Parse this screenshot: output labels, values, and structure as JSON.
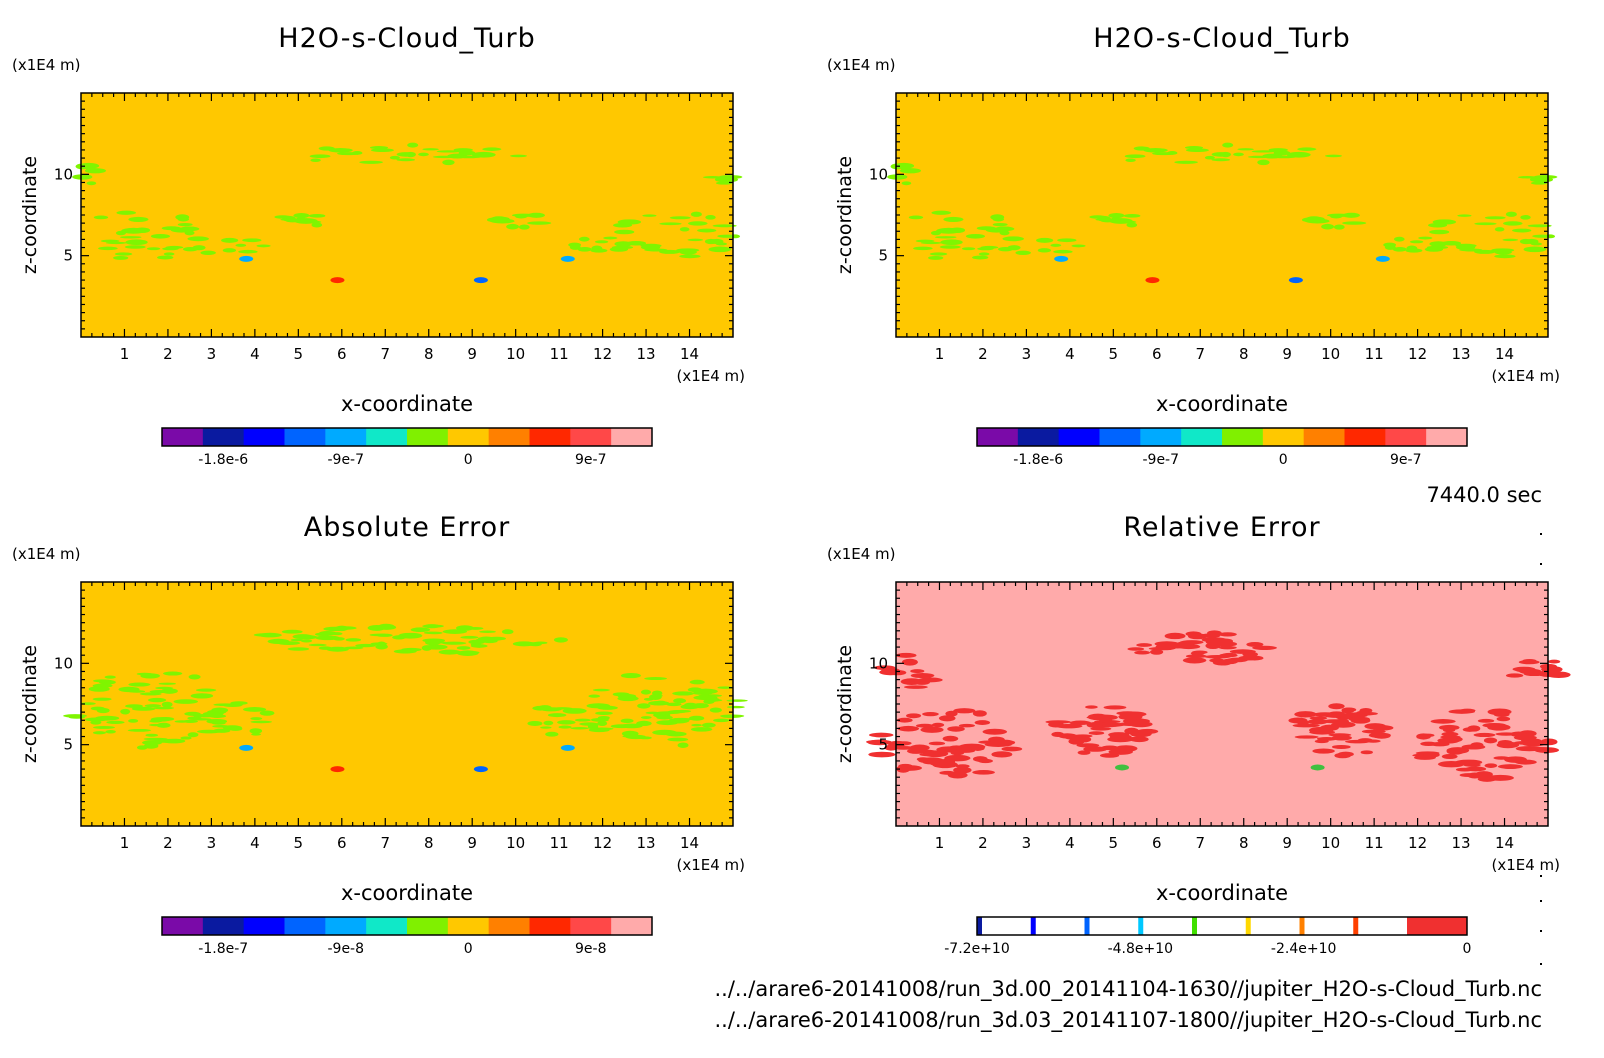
{
  "time_label": "7440.0 sec",
  "file_lines": [
    "../../arare6-20141008/run_3d.00_20141104-1630//jupiter_H2O-s-Cloud_Turb.nc",
    "../../arare6-20141008/run_3d.03_20141107-1800//jupiter_H2O-s-Cloud_Turb.nc"
  ],
  "colors": {
    "background_yellow": "#ffc800",
    "feature_green": "#7ff500",
    "relerr_background": "#ffaaaa",
    "relerr_feature": "#f03030"
  },
  "chart_data": [
    {
      "type": "heatmap",
      "title": "H2O-s-Cloud_Turb",
      "xlabel": "x-coordinate",
      "ylabel": "z-coordinate",
      "x_unit": "(x1E4 m)",
      "y_unit": "(x1E4 m)",
      "xlim": [
        0,
        15
      ],
      "ylim": [
        0,
        15
      ],
      "x_ticks": [
        "1",
        "2",
        "3",
        "4",
        "5",
        "6",
        "7",
        "8",
        "9",
        "10",
        "11",
        "12",
        "13",
        "14"
      ],
      "y_ticks": [
        "5",
        "10"
      ],
      "colorbar": {
        "colors": [
          "#7a0aa8",
          "#0a1aa0",
          "#0000ff",
          "#0064ff",
          "#00aaff",
          "#10e8c8",
          "#80f000",
          "#ffc800",
          "#ff8000",
          "#ff2800",
          "#ff4848",
          "#ffaaaa"
        ],
        "labels": [
          "-1.8e-6",
          "-9e-7",
          "0",
          "9e-7"
        ],
        "label_positions": [
          -1.8e-06,
          -9e-07,
          0,
          9e-07
        ],
        "range": [
          -2.25e-06,
          1.35e-06
        ]
      },
      "dominant_value": "0"
    },
    {
      "type": "heatmap",
      "title": "H2O-s-Cloud_Turb",
      "xlabel": "x-coordinate",
      "ylabel": "z-coordinate",
      "x_unit": "(x1E4 m)",
      "y_unit": "(x1E4 m)",
      "xlim": [
        0,
        15
      ],
      "ylim": [
        0,
        15
      ],
      "x_ticks": [
        "1",
        "2",
        "3",
        "4",
        "5",
        "6",
        "7",
        "8",
        "9",
        "10",
        "11",
        "12",
        "13",
        "14"
      ],
      "y_ticks": [
        "5",
        "10"
      ],
      "colorbar": {
        "colors": [
          "#7a0aa8",
          "#0a1aa0",
          "#0000ff",
          "#0064ff",
          "#00aaff",
          "#10e8c8",
          "#80f000",
          "#ffc800",
          "#ff8000",
          "#ff2800",
          "#ff4848",
          "#ffaaaa"
        ],
        "labels": [
          "-1.8e-6",
          "-9e-7",
          "0",
          "9e-7"
        ],
        "label_positions": [
          -1.8e-06,
          -9e-07,
          0,
          9e-07
        ],
        "range": [
          -2.25e-06,
          1.35e-06
        ]
      },
      "dominant_value": "0"
    },
    {
      "type": "heatmap",
      "title": "Absolute Error",
      "xlabel": "x-coordinate",
      "ylabel": "z-coordinate",
      "x_unit": "(x1E4 m)",
      "y_unit": "(x1E4 m)",
      "xlim": [
        0,
        15
      ],
      "ylim": [
        0,
        15
      ],
      "x_ticks": [
        "1",
        "2",
        "3",
        "4",
        "5",
        "6",
        "7",
        "8",
        "9",
        "10",
        "11",
        "12",
        "13",
        "14"
      ],
      "y_ticks": [
        "5",
        "10"
      ],
      "colorbar": {
        "colors": [
          "#7a0aa8",
          "#0a1aa0",
          "#0000ff",
          "#0064ff",
          "#00aaff",
          "#10e8c8",
          "#80f000",
          "#ffc800",
          "#ff8000",
          "#ff2800",
          "#ff4848",
          "#ffaaaa"
        ],
        "labels": [
          "-1.8e-7",
          "-9e-8",
          "0",
          "9e-8"
        ],
        "label_positions": [
          -1.8e-07,
          -9e-08,
          0,
          9e-08
        ],
        "range": [
          -2.25e-07,
          1.35e-07
        ]
      },
      "dominant_value": "0"
    },
    {
      "type": "heatmap",
      "title": "Relative Error",
      "xlabel": "x-coordinate",
      "ylabel": "z-coordinate",
      "x_unit": "(x1E4 m)",
      "y_unit": "(x1E4 m)",
      "xlim": [
        0,
        15
      ],
      "ylim": [
        0,
        15
      ],
      "x_ticks": [
        "1",
        "2",
        "3",
        "4",
        "5",
        "6",
        "7",
        "8",
        "9",
        "10",
        "11",
        "12",
        "13",
        "14"
      ],
      "y_ticks": [
        "5",
        "10"
      ],
      "colorbar": {
        "colors": [
          "#0a1aa0",
          "#ffffff",
          "#0000ff",
          "#ffffff",
          "#0064ff",
          "#ffffff",
          "#00c8ff",
          "#ffffff",
          "#40e000",
          "#ffffff",
          "#ffd800",
          "#ffffff",
          "#ff8000",
          "#ffffff",
          "#ff4000",
          "#ffffff",
          "#f03030"
        ],
        "labels": [
          "-7.2e+10",
          "-4.8e+10",
          "-2.4e+10",
          "0"
        ],
        "label_positions": [
          -72000000000.0,
          -48000000000.0,
          -24000000000.0,
          0
        ],
        "range": [
          -72000000000.0,
          0
        ]
      },
      "dominant_value": "0"
    }
  ]
}
